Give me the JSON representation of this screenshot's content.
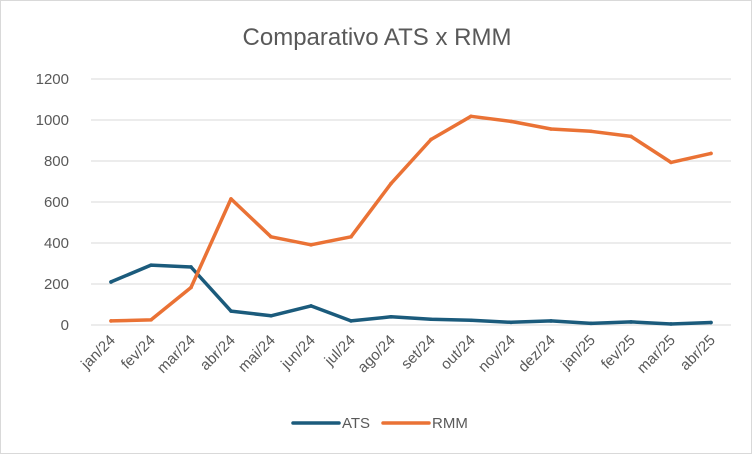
{
  "chart_data": {
    "type": "line",
    "title": "Comparativo ATS x RMM",
    "xlabel": "",
    "ylabel": "",
    "categories": [
      "jan/24",
      "fev/24",
      "mar/24",
      "abr/24",
      "mai/24",
      "jun/24",
      "jul/24",
      "ago/24",
      "set/24",
      "out/24",
      "nov/24",
      "dez/24",
      "jan/25",
      "fev/25",
      "mar/25",
      "abr/25"
    ],
    "ylim": [
      0,
      1200
    ],
    "yticks": [
      "0",
      "200",
      "400",
      "600",
      "800",
      "1000",
      "1200"
    ],
    "grid": true,
    "legend": "bottom",
    "series": [
      {
        "name": "ATS",
        "color": "#1b5b7c",
        "values": [
          210,
          292,
          283,
          68,
          45,
          93,
          20,
          40,
          28,
          23,
          13,
          20,
          8,
          15,
          5,
          12
        ]
      },
      {
        "name": "RMM",
        "color": "#ea7235",
        "values": [
          20,
          25,
          183,
          615,
          430,
          391,
          430,
          690,
          905,
          1018,
          993,
          956,
          945,
          920,
          793,
          837
        ]
      }
    ]
  }
}
